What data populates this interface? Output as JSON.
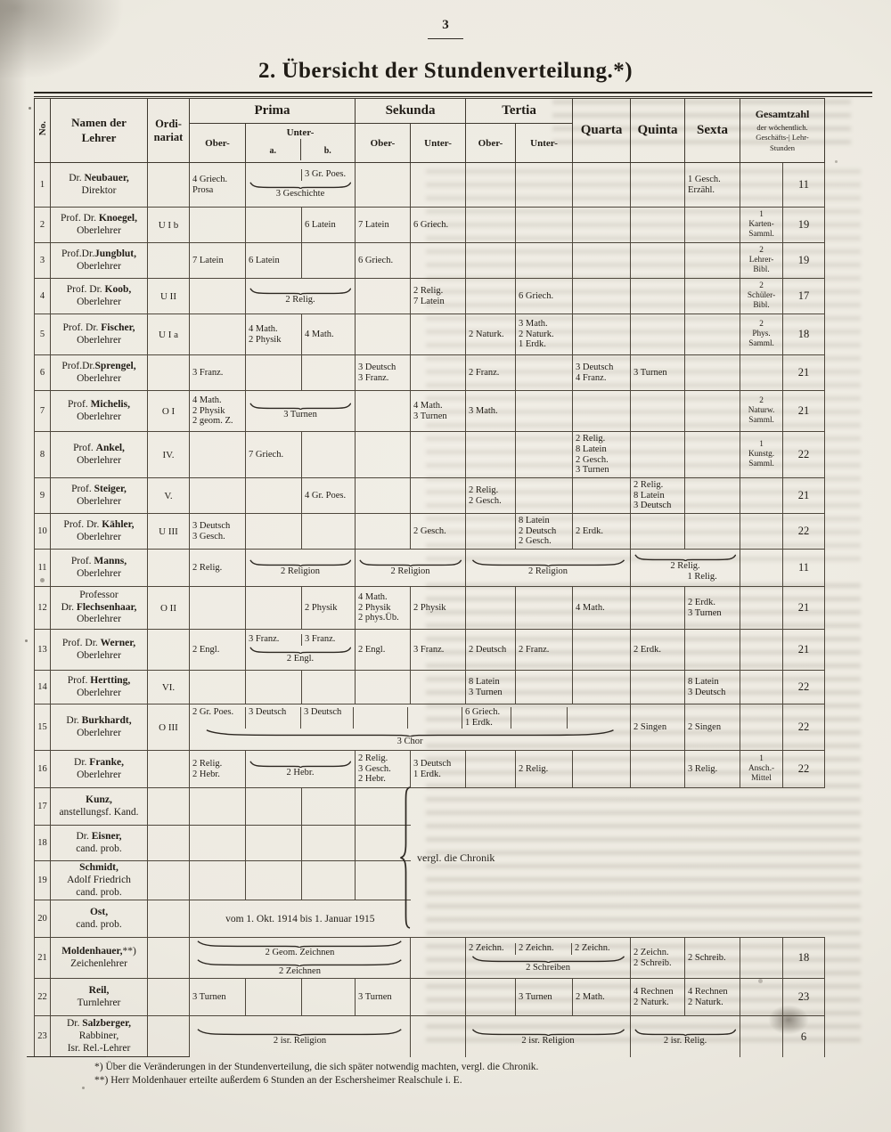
{
  "colors": {
    "paper": "#efece4",
    "ink": "#201c16",
    "line": "#4e473c"
  },
  "page": {
    "number": "3",
    "title": "2. Übersicht der Stundenverteilung.*)"
  },
  "header": {
    "no": "No.",
    "name": [
      "Namen der",
      "Lehrer"
    ],
    "ord": [
      "Ordi-",
      "nariat"
    ],
    "groups": {
      "prima": "Prima",
      "sekunda": "Sekunda",
      "tertia": "Tertia"
    },
    "sub": {
      "ober": "Ober-",
      "unter": "Unter-",
      "a": "a.",
      "b": "b."
    },
    "quarta": "Quarta",
    "quinta": "Quinta",
    "sexta": "Sexta",
    "gesamt": [
      "Gesamtzahl",
      "der wöchentlich.",
      "Geschäfts-| Lehr-",
      "Stunden"
    ]
  },
  "annotations": {
    "chronik": "vergl. die Chronik"
  },
  "footnotes": [
    "*) Über die Veränderungen in der Stundenverteilung, die sich später notwendig machten, vergl. die Chronik.",
    "**) Herr Moldenhauer erteilte außerdem 6 Stunden an der Eschersheimer Realschule i. E."
  ],
  "rows": [
    {
      "no": "1",
      "name": [
        "Dr. {{Neubauer,}}",
        "Direktor"
      ],
      "ord": "",
      "cells": [
        {
          "c": "ober",
          "l": [
            "4 Griech.",
            "Prosa"
          ]
        },
        {
          "s": [
            "ua",
            "ub"
          ],
          "top": [
            [],
            [
              "3 Gr. Poes."
            ]
          ],
          "b": [
            "3 Geschichte"
          ]
        },
        {
          "c": "q6",
          "l": [
            "1 Gesch.",
            "Erzähl."
          ]
        }
      ],
      "g": [],
      "sum": "11"
    },
    {
      "no": "2",
      "name": [
        "Prof. Dr. {{Knoegel,}}",
        "Oberlehrer"
      ],
      "ord": "U I b",
      "cells": [
        {
          "c": "ub",
          "l": [
            "6 Latein"
          ]
        },
        {
          "c": "so",
          "l": [
            "7 Latein"
          ]
        },
        {
          "c": "su",
          "l": [
            "6 Griech."
          ]
        }
      ],
      "g": [
        "1",
        "Karten-",
        "Samml."
      ],
      "sum": "19"
    },
    {
      "no": "3",
      "name": [
        "Prof.Dr.{{Jungblut,}}",
        "Oberlehrer"
      ],
      "ord": "",
      "cells": [
        {
          "c": "ober",
          "l": [
            "7 Latein"
          ]
        },
        {
          "c": "ua",
          "l": [
            "6 Latein"
          ]
        },
        {
          "c": "so",
          "l": [
            "6 Griech."
          ]
        }
      ],
      "g": [
        "2",
        "Lehrer-",
        "Bibl."
      ],
      "sum": "19"
    },
    {
      "no": "4",
      "name": [
        "Prof. Dr. {{Koob,}}",
        "Oberlehrer"
      ],
      "ord": "U II",
      "cells": [
        {
          "s": [
            "ua",
            "ub"
          ],
          "b": [
            "2 Relig."
          ]
        },
        {
          "c": "su",
          "l": [
            "2 Relig.",
            "7 Latein"
          ]
        },
        {
          "c": "tu",
          "l": [
            "6 Griech."
          ]
        }
      ],
      "g": [
        "2",
        "Schüler-",
        "Bibl."
      ],
      "sum": "17"
    },
    {
      "no": "5",
      "name": [
        "Prof. Dr. {{Fischer,}}",
        "Oberlehrer"
      ],
      "ord": "U I a",
      "cells": [
        {
          "c": "ua",
          "l": [
            "4 Math.",
            "2 Physik"
          ]
        },
        {
          "c": "ub",
          "l": [
            "4 Math."
          ]
        },
        {
          "c": "to",
          "l": [
            "2 Naturk."
          ]
        },
        {
          "c": "tu",
          "l": [
            "3 Math.",
            "2 Naturk.",
            "1 Erdk."
          ]
        }
      ],
      "g": [
        "2",
        "Phys.",
        "Samml."
      ],
      "sum": "18"
    },
    {
      "no": "6",
      "name": [
        "Prof.Dr.{{Sprengel,}}",
        "Oberlehrer"
      ],
      "ord": "",
      "cells": [
        {
          "c": "ober",
          "l": [
            "3 Franz."
          ]
        },
        {
          "c": "so",
          "l": [
            "3 Deutsch",
            "3 Franz."
          ]
        },
        {
          "c": "to",
          "l": [
            "2 Franz."
          ]
        },
        {
          "c": "q4",
          "l": [
            "3 Deutsch",
            "4 Franz."
          ]
        },
        {
          "c": "q5",
          "l": [
            "3 Turnen"
          ]
        }
      ],
      "g": [],
      "sum": "21"
    },
    {
      "no": "7",
      "name": [
        "Prof. {{Michelis,}}",
        "Oberlehrer"
      ],
      "ord": "O I",
      "cells": [
        {
          "c": "ober",
          "l": [
            "4 Math.",
            "2 Physik",
            "2 geom. Z."
          ]
        },
        {
          "s": [
            "ua",
            "ub"
          ],
          "b": [
            "3 Turnen"
          ]
        },
        {
          "c": "su",
          "l": [
            "4 Math.",
            "3 Turnen"
          ]
        },
        {
          "c": "to",
          "l": [
            "3 Math."
          ]
        }
      ],
      "g": [
        "2",
        "Naturw.",
        "Samml."
      ],
      "sum": "21"
    },
    {
      "no": "8",
      "name": [
        "Prof. {{Ankel,}}",
        "Oberlehrer"
      ],
      "ord": "IV.",
      "cells": [
        {
          "c": "ua",
          "l": [
            "7 Griech."
          ]
        },
        {
          "c": "q4",
          "l": [
            "2 Relig.",
            "8 Latein",
            "2 Gesch.",
            "3 Turnen"
          ]
        }
      ],
      "g": [
        "1",
        "Kunstg.",
        "Samml."
      ],
      "sum": "22"
    },
    {
      "no": "9",
      "name": [
        "Prof. {{Steiger,}}",
        "Oberlehrer"
      ],
      "ord": "V.",
      "cells": [
        {
          "c": "ub",
          "l": [
            "4 Gr. Poes."
          ]
        },
        {
          "c": "to",
          "l": [
            "2 Relig.",
            "2 Gesch."
          ]
        },
        {
          "c": "q5",
          "l": [
            "2 Relig.",
            "8 Latein",
            "3 Deutsch"
          ]
        }
      ],
      "g": [],
      "sum": "21"
    },
    {
      "no": "10",
      "name": [
        "Prof. Dr. {{Kähler,}}",
        "Oberlehrer"
      ],
      "ord": "U III",
      "cells": [
        {
          "c": "ober",
          "l": [
            "3 Deutsch",
            "3 Gesch."
          ]
        },
        {
          "c": "su",
          "l": [
            "2 Gesch."
          ]
        },
        {
          "c": "tu",
          "l": [
            "8 Latein",
            "2 Deutsch",
            "2 Gesch."
          ]
        },
        {
          "c": "q4",
          "l": [
            "2 Erdk."
          ]
        }
      ],
      "g": [],
      "sum": "22"
    },
    {
      "no": "11",
      "name": [
        "Prof. {{Manns,}}",
        "Oberlehrer"
      ],
      "ord": "",
      "cells": [
        {
          "c": "ober",
          "l": [
            "2 Relig."
          ]
        },
        {
          "s": [
            "ua",
            "ub"
          ],
          "b": [
            "2 Religion"
          ]
        },
        {
          "s": [
            "so",
            "su"
          ],
          "b": [
            "2 Religion"
          ]
        },
        {
          "s": [
            "to",
            "tu",
            "q4"
          ],
          "b": [
            "2 Religion"
          ]
        },
        {
          "s": [
            "q5",
            "q6"
          ],
          "bl": [
            "2 Relig.",
            "1 Relig."
          ]
        }
      ],
      "g": [],
      "sum": "11"
    },
    {
      "no": "12",
      "name": [
        "Professor",
        "Dr. {{Flechsenhaar,}}",
        "Oberlehrer"
      ],
      "ord": "O II",
      "cells": [
        {
          "c": "ub",
          "l": [
            "2 Physik"
          ]
        },
        {
          "c": "so",
          "l": [
            "4 Math.",
            "2 Physik",
            "2 phys.Üb."
          ]
        },
        {
          "c": "su",
          "l": [
            "2 Physik"
          ]
        },
        {
          "c": "q4",
          "l": [
            "4 Math."
          ]
        },
        {
          "c": "q6",
          "l": [
            "2 Erdk.",
            "3 Turnen"
          ]
        }
      ],
      "g": [],
      "sum": "21"
    },
    {
      "no": "13",
      "name": [
        "Prof. Dr. {{Werner,}}",
        "Oberlehrer"
      ],
      "ord": "",
      "cells": [
        {
          "c": "ober",
          "l": [
            "2 Engl."
          ]
        },
        {
          "s": [
            "ua",
            "ub"
          ],
          "top": [
            [
              "3 Franz."
            ],
            [
              "3 Franz."
            ]
          ],
          "b": [
            "2 Engl."
          ]
        },
        {
          "c": "so",
          "l": [
            "2 Engl."
          ]
        },
        {
          "c": "su",
          "l": [
            "3 Franz."
          ]
        },
        {
          "c": "to",
          "l": [
            "2 Deutsch"
          ]
        },
        {
          "c": "tu",
          "l": [
            "2 Franz."
          ]
        },
        {
          "c": "q5",
          "l": [
            "2 Erdk."
          ]
        }
      ],
      "g": [],
      "sum": "21"
    },
    {
      "no": "14",
      "name": [
        "Prof. {{Hertting,}}",
        "Oberlehrer"
      ],
      "ord": "VI.",
      "cells": [
        {
          "c": "to",
          "l": [
            "8 Latein",
            "3 Turnen"
          ]
        },
        {
          "c": "q6",
          "l": [
            "8 Latein",
            "3 Deutsch"
          ]
        }
      ],
      "g": [],
      "sum": "22"
    },
    {
      "no": "15",
      "name": [
        "Dr. {{Burkhardt,}}",
        "Oberlehrer"
      ],
      "ord": "O III",
      "cells": [
        {
          "s": [
            "ober",
            "ua",
            "ub",
            "so",
            "su",
            "to",
            "tu",
            "q4"
          ],
          "top": [
            [
              "2 Gr. Poes."
            ],
            [
              "3 Deutsch"
            ],
            [
              "3 Deutsch"
            ],
            [],
            [],
            [
              "6 Griech.",
              "1 Erdk."
            ],
            [],
            []
          ],
          "b": [
            "3 Chor"
          ]
        },
        {
          "c": "q5",
          "l": [
            "2 Singen"
          ]
        },
        {
          "c": "q6",
          "l": [
            "2 Singen"
          ]
        }
      ],
      "g": [],
      "sum": "22"
    },
    {
      "no": "16",
      "name": [
        "Dr. {{Franke,}}",
        "Oberlehrer"
      ],
      "ord": "",
      "cells": [
        {
          "c": "ober",
          "l": [
            "2 Relig.",
            "2 Hebr."
          ]
        },
        {
          "s": [
            "ua",
            "ub"
          ],
          "b": [
            "2 Hebr."
          ]
        },
        {
          "c": "so",
          "l": [
            "2 Relig.",
            "3 Gesch.",
            "2 Hebr."
          ]
        },
        {
          "c": "su",
          "l": [
            "3 Deutsch",
            "1 Erdk."
          ]
        },
        {
          "c": "tu",
          "l": [
            "2 Relig."
          ]
        },
        {
          "c": "q6",
          "l": [
            "3 Relig."
          ]
        }
      ],
      "g": [
        "1",
        "Ansch.-",
        "Mittel"
      ],
      "sum": "22"
    },
    {
      "no": "17",
      "name": [
        "{{Kunz,}}",
        "anstellungsf. Kand."
      ],
      "ord": "",
      "cells": [],
      "g": [],
      "sum": ""
    },
    {
      "no": "18",
      "name": [
        "Dr. {{Eisner,}}",
        "cand. prob."
      ],
      "ord": "",
      "cells": [],
      "g": [],
      "sum": ""
    },
    {
      "no": "19",
      "name": [
        "{{Schmidt,}}",
        "Adolf Friedrich",
        "cand. prob."
      ],
      "ord": "",
      "cells": [],
      "g": [],
      "sum": ""
    },
    {
      "no": "20",
      "name": [
        "{{Ost,}}",
        "cand. prob."
      ],
      "ord": "",
      "cells": [
        {
          "s": [
            "ober",
            "ua",
            "ub",
            "so"
          ],
          "t": "vom 1. Okt. 1914 bis 1. Januar 1915"
        }
      ],
      "g": [],
      "sum": ""
    },
    {
      "no": "21",
      "name": [
        "{{Moldenhauer,}}**)",
        "Zeichenlehrer"
      ],
      "ord": "",
      "cells": [
        {
          "s": [
            "ober",
            "ua",
            "ub",
            "so"
          ],
          "b": [
            "2 Geom. Zeichnen",
            "2 Zeichnen"
          ]
        },
        {
          "s": [
            "to",
            "tu",
            "q4"
          ],
          "top": [
            [
              "2 Zeichn."
            ],
            [
              "2 Zeichn."
            ],
            [
              "2 Zeichn."
            ]
          ],
          "b": [
            "2 Schreiben"
          ]
        },
        {
          "c": "q5",
          "l": [
            "2 Zeichn.",
            "2 Schreib."
          ]
        },
        {
          "c": "q6",
          "l": [
            "2 Schreib."
          ]
        }
      ],
      "g": [],
      "sum": "18"
    },
    {
      "no": "22",
      "name": [
        "{{Reil,}}",
        "Turnlehrer"
      ],
      "ord": "",
      "cells": [
        {
          "c": "ober",
          "l": [
            "3 Turnen"
          ]
        },
        {
          "c": "so",
          "l": [
            "3 Turnen"
          ]
        },
        {
          "c": "tu",
          "l": [
            "3 Turnen"
          ]
        },
        {
          "c": "q4",
          "l": [
            "2 Math."
          ]
        },
        {
          "c": "q5",
          "l": [
            "4 Rechnen",
            "2 Naturk."
          ]
        },
        {
          "c": "q6",
          "l": [
            "4 Rechnen",
            "2 Naturk."
          ]
        }
      ],
      "g": [],
      "sum": "23"
    },
    {
      "no": "23",
      "name": [
        "Dr. {{Salzberger,}}",
        "Rabbiner,",
        "Isr. Rel.-Lehrer"
      ],
      "ord": "",
      "cells": [
        {
          "s": [
            "ober",
            "ua",
            "ub",
            "so"
          ],
          "b": [
            "2 isr. Religion"
          ]
        },
        {
          "s": [
            "to",
            "tu",
            "q4"
          ],
          "b": [
            "2 isr. Religion"
          ]
        },
        {
          "s": [
            "q5",
            "q6"
          ],
          "b": [
            "2 isr. Relig."
          ]
        }
      ],
      "g": [],
      "sum": "6"
    }
  ]
}
